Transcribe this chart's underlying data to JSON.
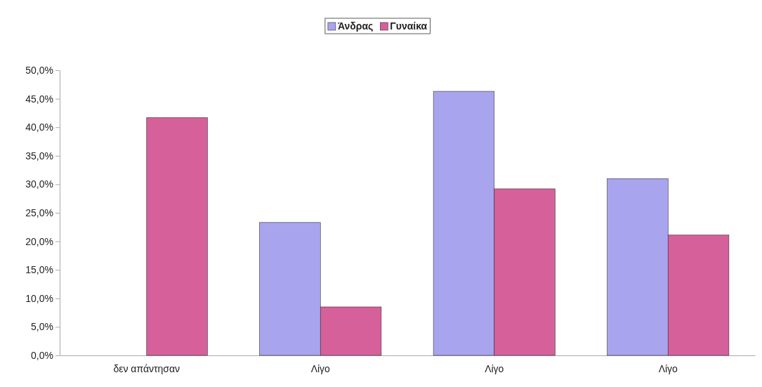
{
  "chart_data": {
    "type": "bar",
    "categories": [
      "δεν απάντησαν",
      "Λίγο",
      "Λίγο",
      "Λίγο"
    ],
    "series": [
      {
        "name": "Άνδρας",
        "color": "#a9a4ee",
        "values": [
          0,
          23.3,
          46.3,
          31.0
        ]
      },
      {
        "name": "Γυναίκα",
        "color": "#d6609a",
        "values": [
          41.7,
          8.5,
          29.2,
          21.1
        ]
      }
    ],
    "ylim": [
      0,
      50
    ],
    "yticks": [
      {
        "value": 0,
        "label": "0,0%"
      },
      {
        "value": 5,
        "label": "5,0%"
      },
      {
        "value": 10,
        "label": "10,0%"
      },
      {
        "value": 15,
        "label": "15,0%"
      },
      {
        "value": 20,
        "label": "20,0%"
      },
      {
        "value": 25,
        "label": "25,0%"
      },
      {
        "value": 30,
        "label": "30,0%"
      },
      {
        "value": 35,
        "label": "35,0%"
      },
      {
        "value": 40,
        "label": "40,0%"
      },
      {
        "value": 45,
        "label": "45,0%"
      },
      {
        "value": 50,
        "label": "50,0%"
      }
    ],
    "legend": "top",
    "grid": false
  }
}
